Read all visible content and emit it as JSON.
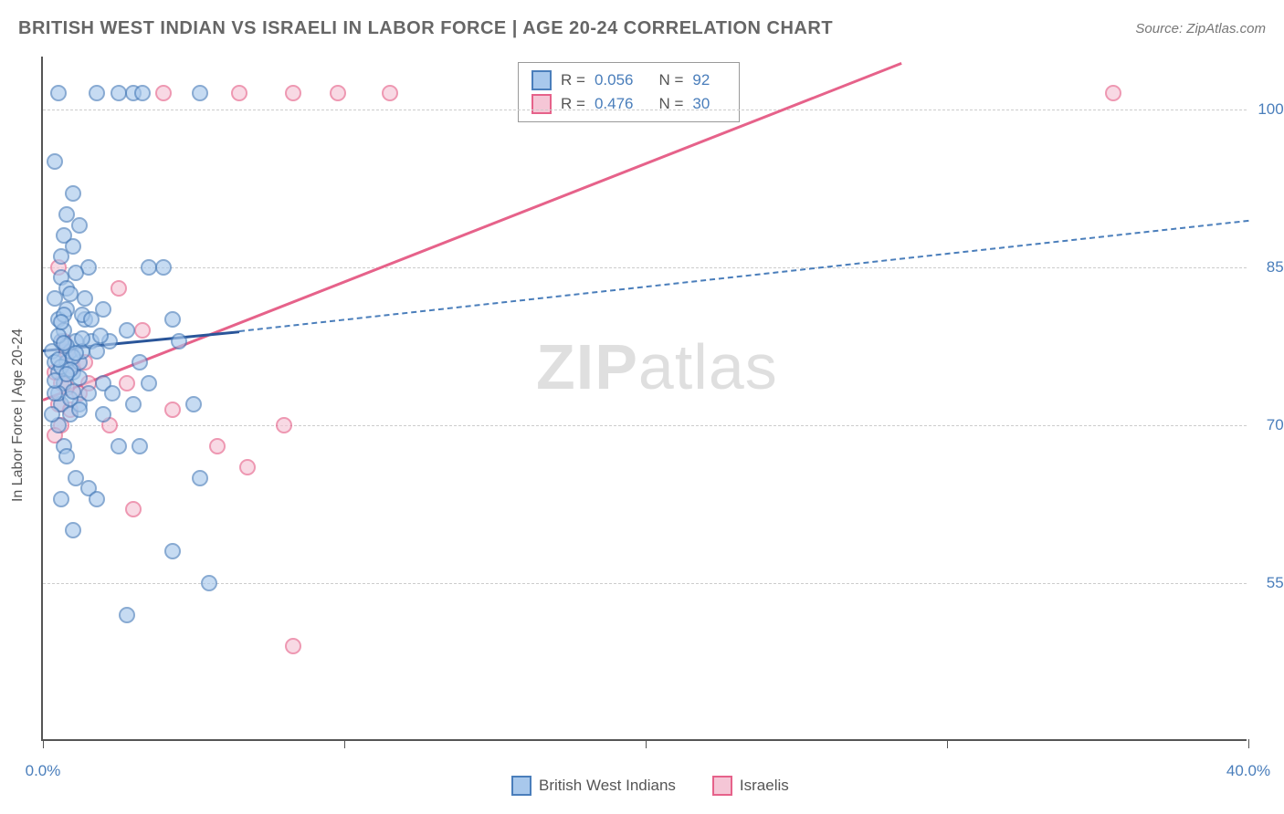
{
  "header": {
    "title": "BRITISH WEST INDIAN VS ISRAELI IN LABOR FORCE | AGE 20-24 CORRELATION CHART",
    "source_prefix": "Source: ",
    "source_name": "ZipAtlas.com"
  },
  "chart": {
    "type": "scatter",
    "y_axis_label": "In Labor Force | Age 20-24",
    "xlim": [
      0,
      40
    ],
    "ylim": [
      40,
      105
    ],
    "x_ticks": [
      0,
      10,
      20,
      30,
      40
    ],
    "x_tick_labels": [
      "0.0%",
      "",
      "",
      "",
      "40.0%"
    ],
    "y_ticks": [
      55,
      70,
      85,
      100
    ],
    "y_tick_labels": [
      "55.0%",
      "70.0%",
      "85.0%",
      "100.0%"
    ],
    "grid_color": "#cccccc",
    "background_color": "#ffffff",
    "series": {
      "blue": {
        "label": "British West Indians",
        "fill_color": "#a8c8ec",
        "stroke_color": "#4a7ebb",
        "points": [
          [
            0.3,
            77
          ],
          [
            0.4,
            76
          ],
          [
            0.5,
            75
          ],
          [
            0.6,
            78
          ],
          [
            0.7,
            74
          ],
          [
            0.5,
            80
          ],
          [
            0.8,
            76
          ],
          [
            0.6,
            72
          ],
          [
            0.4,
            82
          ],
          [
            0.7,
            79
          ],
          [
            0.9,
            77
          ],
          [
            0.5,
            73
          ],
          [
            1.0,
            75
          ],
          [
            1.1,
            78
          ],
          [
            0.8,
            81
          ],
          [
            1.2,
            76
          ],
          [
            0.6,
            84
          ],
          [
            0.9,
            71
          ],
          [
            1.3,
            77
          ],
          [
            0.7,
            88
          ],
          [
            1.0,
            92
          ],
          [
            1.4,
            80
          ],
          [
            0.8,
            83
          ],
          [
            1.5,
            85
          ],
          [
            1.2,
            72
          ],
          [
            1.6,
            78
          ],
          [
            1.8,
            77
          ],
          [
            2.0,
            81
          ],
          [
            0.5,
            70
          ],
          [
            0.7,
            68
          ],
          [
            0.4,
            95
          ],
          [
            1.0,
            87
          ],
          [
            1.2,
            89
          ],
          [
            0.8,
            67
          ],
          [
            1.5,
            73
          ],
          [
            0.6,
            63
          ],
          [
            1.1,
            65
          ],
          [
            2.0,
            74
          ],
          [
            2.2,
            78
          ],
          [
            0.9,
            72.5
          ],
          [
            1.3,
            80.5
          ],
          [
            0.5,
            101.5
          ],
          [
            1.8,
            101.5
          ],
          [
            2.5,
            101.5
          ],
          [
            3.0,
            101.5
          ],
          [
            3.3,
            101.5
          ],
          [
            5.2,
            101.5
          ],
          [
            2.3,
            73
          ],
          [
            2.8,
            79
          ],
          [
            3.2,
            76
          ],
          [
            3.5,
            85
          ],
          [
            4.0,
            85
          ],
          [
            4.3,
            80
          ],
          [
            1.0,
            60
          ],
          [
            1.5,
            64
          ],
          [
            1.8,
            63
          ],
          [
            2.0,
            71
          ],
          [
            2.5,
            68
          ],
          [
            3.0,
            72
          ],
          [
            3.2,
            68
          ],
          [
            3.5,
            74
          ],
          [
            4.5,
            78
          ],
          [
            2.8,
            52
          ],
          [
            4.3,
            58
          ],
          [
            5.2,
            65
          ],
          [
            5.0,
            72
          ],
          [
            5.5,
            55
          ],
          [
            0.3,
            71
          ],
          [
            0.4,
            73
          ],
          [
            0.6,
            75.5
          ],
          [
            0.8,
            77.5
          ],
          [
            1.0,
            76.5
          ],
          [
            1.2,
            74.5
          ],
          [
            0.5,
            78.5
          ],
          [
            0.7,
            80.5
          ],
          [
            0.9,
            82.5
          ],
          [
            1.1,
            84.5
          ],
          [
            0.6,
            86
          ],
          [
            0.8,
            90
          ],
          [
            1.4,
            82
          ],
          [
            1.6,
            80
          ],
          [
            1.9,
            78.5
          ],
          [
            0.5,
            76.2
          ],
          [
            0.7,
            77.8
          ],
          [
            0.4,
            74.2
          ],
          [
            0.6,
            79.8
          ],
          [
            0.9,
            75.3
          ],
          [
            1.1,
            76.8
          ],
          [
            1.3,
            78.2
          ],
          [
            0.8,
            74.8
          ],
          [
            1.0,
            73.2
          ],
          [
            1.2,
            71.5
          ]
        ],
        "trend_solid": {
          "x1": 0,
          "y1": 77.2,
          "x2": 6.5,
          "y2": 79.0
        },
        "trend_dashed": {
          "x1": 6.5,
          "y1": 79.0,
          "x2": 40,
          "y2": 89.5
        }
      },
      "pink": {
        "label": "Israelis",
        "fill_color": "#f5c6d6",
        "stroke_color": "#e6628a",
        "points": [
          [
            0.4,
            75
          ],
          [
            0.6,
            74
          ],
          [
            0.8,
            77
          ],
          [
            0.5,
            72
          ],
          [
            0.7,
            78
          ],
          [
            1.0,
            75.5
          ],
          [
            1.2,
            73
          ],
          [
            0.6,
            70
          ],
          [
            0.9,
            71.5
          ],
          [
            1.4,
            76
          ],
          [
            0.5,
            85
          ],
          [
            2.5,
            83
          ],
          [
            3.3,
            79
          ],
          [
            0.4,
            69
          ],
          [
            0.8,
            73.5
          ],
          [
            1.5,
            74
          ],
          [
            3.0,
            62
          ],
          [
            2.2,
            70
          ],
          [
            4.3,
            71.5
          ],
          [
            4.0,
            101.5
          ],
          [
            6.5,
            101.5
          ],
          [
            8.3,
            101.5
          ],
          [
            9.8,
            101.5
          ],
          [
            11.5,
            101.5
          ],
          [
            35.5,
            101.5
          ],
          [
            5.8,
            68
          ],
          [
            6.8,
            66
          ],
          [
            8.0,
            70
          ],
          [
            8.3,
            49
          ],
          [
            2.8,
            74
          ]
        ],
        "trend_solid": {
          "x1": 0,
          "y1": 72.5,
          "x2": 28.5,
          "y2": 104.5
        }
      }
    },
    "legend_top": {
      "rows": [
        {
          "swatch": "blue",
          "r_label": "R =",
          "r_value": "0.056",
          "n_label": "N =",
          "n_value": "92"
        },
        {
          "swatch": "pink",
          "r_label": "R =",
          "r_value": "0.476",
          "n_label": "N =",
          "n_value": "30"
        }
      ]
    },
    "watermark": {
      "part1": "ZIP",
      "part2": "atlas"
    }
  }
}
